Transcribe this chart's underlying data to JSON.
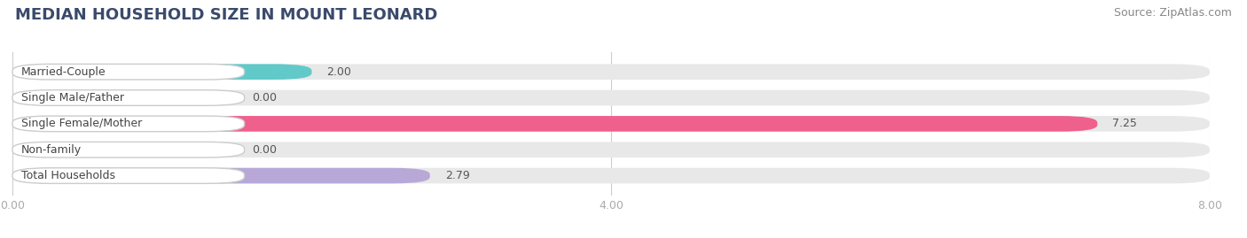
{
  "title": "MEDIAN HOUSEHOLD SIZE IN MOUNT LEONARD",
  "source": "Source: ZipAtlas.com",
  "categories": [
    "Married-Couple",
    "Single Male/Father",
    "Single Female/Mother",
    "Non-family",
    "Total Households"
  ],
  "values": [
    2.0,
    0.0,
    7.25,
    0.0,
    2.79
  ],
  "bar_colors": [
    "#62c9c9",
    "#9bb5e8",
    "#f0608c",
    "#f5c89a",
    "#b8a8d8"
  ],
  "bar_light_colors": [
    "#d0efef",
    "#dce5f7",
    "#fbd0dc",
    "#fde8cc",
    "#ddd4ee"
  ],
  "value_labels": [
    "2.00",
    "0.00",
    "7.25",
    "0.00",
    "2.79"
  ],
  "xlim": [
    0,
    8.0
  ],
  "xticks": [
    0.0,
    4.0,
    8.0
  ],
  "xticklabels": [
    "0.00",
    "4.00",
    "8.00"
  ],
  "bar_height": 0.6,
  "background_color": "#ffffff",
  "bar_bg_color": "#eeeeee",
  "title_fontsize": 13,
  "source_fontsize": 9,
  "label_fontsize": 9,
  "value_fontsize": 9,
  "tick_fontsize": 9
}
